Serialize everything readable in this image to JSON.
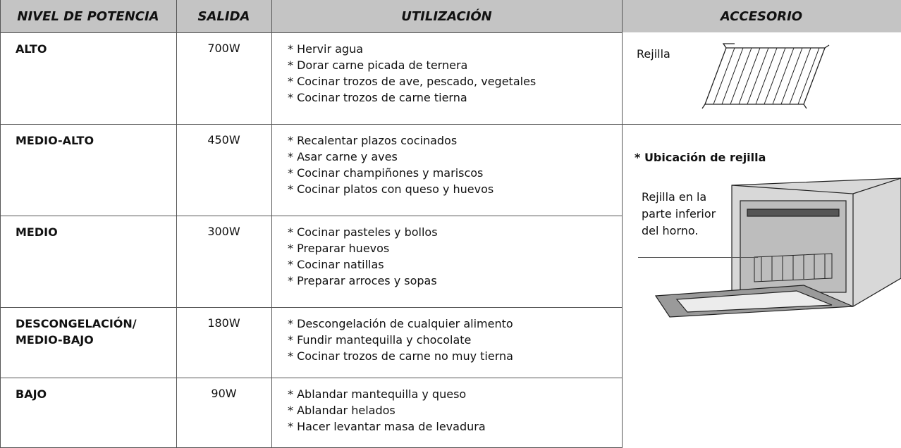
{
  "table": {
    "headers": [
      "NIVEL DE POTENCIA",
      "SALIDA",
      "UTILIZACIÓN",
      "ACCESORIO"
    ],
    "rows": [
      {
        "level": "ALTO",
        "output": "700W",
        "uses": [
          "* Hervir agua",
          "* Dorar carne picada de ternera",
          "* Cocinar trozos de ave, pescado, vegetales",
          "* Cocinar trozos de carne tierna"
        ]
      },
      {
        "level": "MEDIO-ALTO",
        "output": "450W",
        "uses": [
          "* Recalentar plazos cocinados",
          "* Asar carne y aves",
          "* Cocinar champiñones y mariscos",
          "* Cocinar platos con queso y huevos"
        ]
      },
      {
        "level": "MEDIO",
        "output": "300W",
        "uses": [
          "* Cocinar pasteles y bollos",
          "* Preparar huevos",
          "* Cocinar natillas",
          "* Preparar arroces y sopas"
        ]
      },
      {
        "level": "DESCONGELACIÓN/ MEDIO-BAJO",
        "output": "180W",
        "uses": [
          "* Descongelación de cualquier alimento",
          "* Fundir mantequilla y chocolate",
          "* Cocinar trozos de carne no muy tierna"
        ]
      },
      {
        "level": "BAJO",
        "output": "90W",
        "uses": [
          "* Ablandar mantequilla y queso",
          "* Ablandar helados",
          "* Hacer levantar masa de levadura"
        ]
      }
    ]
  },
  "accessory": {
    "label": "Rejilla",
    "location_title": "* Ubicación de rejilla",
    "callout_lines": [
      "Rejilla en la",
      "parte inferior",
      "del horno."
    ]
  }
}
